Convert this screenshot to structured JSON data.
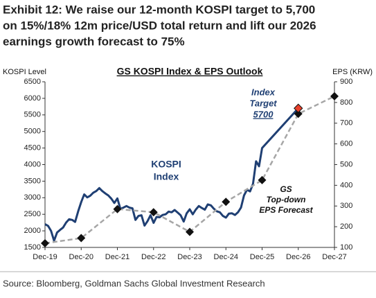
{
  "chart_data": {
    "type": "line",
    "title": [
      "Exhibit 12: We raise our 12-month KOSPI target to 5,700",
      "on 15%/18% 12m price/USD total return and lift our 2026",
      "earnings growth forecast to 75%"
    ],
    "chart_title": "GS KOSPI Index & EPS Outlook",
    "y_label": "KOSPI Level",
    "y2_label": "EPS (KRW)",
    "source": "Source: Bloomberg, Goldman Sachs Global Investment Research",
    "annotations": {
      "kospi": [
        "KOSPI",
        "Index"
      ],
      "target": [
        "Index",
        "Target",
        "5700"
      ],
      "eps": [
        "GS",
        "Top-down",
        "EPS Forecast"
      ]
    },
    "categories": [
      "Dec-19",
      "Dec-20",
      "Dec-21",
      "Dec-22",
      "Dec-23",
      "Dec-24",
      "Dec-25",
      "Dec-26",
      "Dec-27"
    ],
    "ylim": [
      1500,
      6500
    ],
    "yticks": [
      1500,
      2000,
      2500,
      3000,
      3500,
      4000,
      4500,
      5000,
      5500,
      6000,
      6500
    ],
    "y2lim": [
      100,
      900
    ],
    "y2ticks": [
      100,
      200,
      300,
      400,
      500,
      600,
      700,
      800,
      900
    ],
    "series": [
      {
        "name": "KOSPI",
        "color": "#1f3f73",
        "x": [
          "Dec-19",
          "Jan-20",
          "Feb-20",
          "Mar-20",
          "Apr-20",
          "May-20",
          "Jun-20",
          "Jul-20",
          "Aug-20",
          "Sep-20",
          "Oct-20",
          "Nov-20",
          "Dec-20",
          "Jan-21",
          "Feb-21",
          "Mar-21",
          "Apr-21",
          "May-21",
          "Jun-21",
          "Jul-21",
          "Aug-21",
          "Sep-21",
          "Oct-21",
          "Nov-21",
          "Dec-21",
          "Jan-22",
          "Feb-22",
          "Mar-22",
          "Apr-22",
          "May-22",
          "Jun-22",
          "Jul-22",
          "Aug-22",
          "Sep-22",
          "Oct-22",
          "Nov-22",
          "Dec-22",
          "Jan-23",
          "Feb-23",
          "Mar-23",
          "Apr-23",
          "May-23",
          "Jun-23",
          "Jul-23",
          "Aug-23",
          "Sep-23",
          "Oct-23",
          "Nov-23",
          "Dec-23",
          "Jan-24",
          "Feb-24",
          "Mar-24",
          "Apr-24",
          "May-24",
          "Jun-24",
          "Jul-24",
          "Aug-24",
          "Sep-24",
          "Oct-24",
          "Nov-24",
          "Dec-24",
          "Jan-25",
          "Feb-25",
          "Mar-25",
          "Apr-25",
          "May-25",
          "Jun-25",
          "Jul-25",
          "Aug-25",
          "Sep-25",
          "Oct-25",
          "Nov-25",
          "Dec-25",
          "Dec-26"
        ],
        "values": [
          2200,
          2150,
          2000,
          1700,
          1950,
          2030,
          2100,
          2250,
          2350,
          2330,
          2270,
          2590,
          2870,
          3100,
          3010,
          3060,
          3150,
          3200,
          3290,
          3200,
          3130,
          3070,
          2970,
          2840,
          2980,
          2660,
          2700,
          2750,
          2700,
          2680,
          2330,
          2450,
          2470,
          2160,
          2290,
          2470,
          2240,
          2420,
          2410,
          2480,
          2500,
          2580,
          2560,
          2630,
          2550,
          2470,
          2280,
          2530,
          2650,
          2500,
          2640,
          2750,
          2690,
          2640,
          2800,
          2770,
          2670,
          2590,
          2560,
          2450,
          2400,
          2520,
          2530,
          2480,
          2560,
          2700,
          3070,
          3240,
          3190,
          3420,
          4100,
          3950,
          4500,
          5700
        ]
      },
      {
        "name": "EPS",
        "color": "#a6a6a6",
        "axis": "y2",
        "x": [
          "Dec-19",
          "Dec-20",
          "Dec-21",
          "Dec-22",
          "Dec-23",
          "Dec-24",
          "Dec-25",
          "Dec-26",
          "Dec-27"
        ],
        "values": [
          120,
          145,
          285,
          270,
          175,
          320,
          425,
          745,
          830
        ]
      }
    ],
    "target": {
      "x": "Dec-26",
      "value": 5700,
      "color": "#e8412c"
    }
  }
}
